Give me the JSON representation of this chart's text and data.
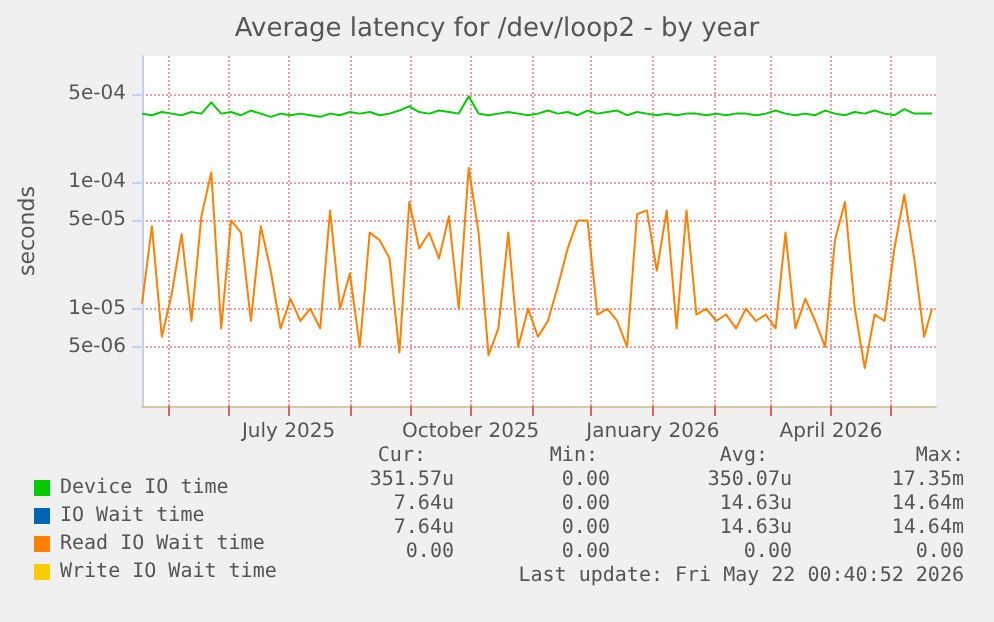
{
  "chart_data": {
    "type": "line",
    "title": "Average latency for /dev/loop2 - by year",
    "ylabel": "seconds",
    "log": "y",
    "grid": true,
    "legend": "bottom",
    "xlim": [
      "2025-04-18",
      "2026-05-24"
    ],
    "ylim": [
      1.7e-06,
      0.001
    ],
    "yticks": [
      {
        "value": 5e-06,
        "label": "5e-06"
      },
      {
        "value": 1e-05,
        "label": "1e-05"
      },
      {
        "value": 5e-05,
        "label": "5e-05"
      },
      {
        "value": 0.0001,
        "label": "1e-04"
      },
      {
        "value": 0.0005,
        "label": "5e-04"
      }
    ],
    "xticks": [
      {
        "value": "2025-05-01",
        "label": null
      },
      {
        "value": "2025-06-01",
        "label": null
      },
      {
        "value": "2025-07-01",
        "label": "July 2025"
      },
      {
        "value": "2025-08-01",
        "label": null
      },
      {
        "value": "2025-09-01",
        "label": null
      },
      {
        "value": "2025-10-01",
        "label": "October 2025"
      },
      {
        "value": "2025-11-01",
        "label": null
      },
      {
        "value": "2025-12-01",
        "label": null
      },
      {
        "value": "2026-01-01",
        "label": "January 2026"
      },
      {
        "value": "2026-02-01",
        "label": null
      },
      {
        "value": "2026-03-01",
        "label": null
      },
      {
        "value": "2026-04-01",
        "label": "April 2026"
      },
      {
        "value": "2026-05-01",
        "label": null
      }
    ],
    "x": [
      "2025-04-18",
      "2025-04-23",
      "2025-04-28",
      "2025-05-03",
      "2025-05-08",
      "2025-05-13",
      "2025-05-18",
      "2025-05-23",
      "2025-05-28",
      "2025-06-02",
      "2025-06-07",
      "2025-06-12",
      "2025-06-17",
      "2025-06-22",
      "2025-06-27",
      "2025-07-02",
      "2025-07-07",
      "2025-07-12",
      "2025-07-17",
      "2025-07-22",
      "2025-07-27",
      "2025-08-01",
      "2025-08-06",
      "2025-08-11",
      "2025-08-16",
      "2025-08-21",
      "2025-08-26",
      "2025-08-31",
      "2025-09-05",
      "2025-09-10",
      "2025-09-15",
      "2025-09-20",
      "2025-09-25",
      "2025-09-30",
      "2025-10-05",
      "2025-10-10",
      "2025-10-15",
      "2025-10-20",
      "2025-10-25",
      "2025-10-30",
      "2025-11-04",
      "2025-11-09",
      "2025-11-14",
      "2025-11-19",
      "2025-11-24",
      "2025-11-29",
      "2025-12-04",
      "2025-12-09",
      "2025-12-14",
      "2025-12-19",
      "2025-12-24",
      "2025-12-29",
      "2026-01-03",
      "2026-01-08",
      "2026-01-13",
      "2026-01-18",
      "2026-01-23",
      "2026-01-28",
      "2026-02-02",
      "2026-02-07",
      "2026-02-12",
      "2026-02-17",
      "2026-02-22",
      "2026-02-27",
      "2026-03-04",
      "2026-03-09",
      "2026-03-14",
      "2026-03-19",
      "2026-03-24",
      "2026-03-29",
      "2026-04-03",
      "2026-04-08",
      "2026-04-13",
      "2026-04-18",
      "2026-04-23",
      "2026-04-28",
      "2026-05-03",
      "2026-05-08",
      "2026-05-13",
      "2026-05-18",
      "2026-05-22"
    ],
    "series": [
      {
        "name": "Device IO time",
        "color": "#00cc00",
        "values": [
          0.00035,
          0.00034,
          0.00036,
          0.00035,
          0.00034,
          0.00036,
          0.00035,
          0.00043,
          0.00035,
          0.00036,
          0.00034,
          0.00037,
          0.00035,
          0.00033,
          0.00035,
          0.00034,
          0.00035,
          0.00034,
          0.00033,
          0.00035,
          0.00034,
          0.00036,
          0.00035,
          0.00036,
          0.00034,
          0.00035,
          0.00037,
          0.0004,
          0.00036,
          0.00035,
          0.00037,
          0.00036,
          0.00035,
          0.00048,
          0.00035,
          0.00034,
          0.00035,
          0.00036,
          0.00035,
          0.00034,
          0.00035,
          0.00037,
          0.00035,
          0.00036,
          0.00034,
          0.00037,
          0.00035,
          0.00036,
          0.00037,
          0.00034,
          0.00036,
          0.00035,
          0.00034,
          0.00035,
          0.00034,
          0.00035,
          0.00035,
          0.00034,
          0.00035,
          0.00034,
          0.00035,
          0.00035,
          0.00034,
          0.00035,
          0.00037,
          0.00035,
          0.00034,
          0.00035,
          0.00034,
          0.00037,
          0.00035,
          0.00034,
          0.00036,
          0.00035,
          0.00037,
          0.00035,
          0.00034,
          0.00038,
          0.00035,
          0.00035,
          0.00035
        ]
      },
      {
        "name": "IO Wait time",
        "color": "#0066b3",
        "values": [
          null,
          null,
          null,
          null,
          null,
          null,
          null,
          null,
          null,
          null,
          null,
          null,
          null,
          null,
          null,
          null,
          null,
          null,
          null,
          null,
          null,
          null,
          null,
          null,
          null,
          null,
          null,
          null,
          null,
          null,
          null,
          null,
          null,
          null,
          null,
          null,
          null,
          null,
          null,
          null,
          null,
          null,
          null,
          null,
          null,
          null,
          null,
          null,
          null,
          null,
          null,
          null,
          null,
          null,
          null,
          null,
          null,
          null,
          null,
          null,
          null,
          null,
          null,
          null,
          null,
          null,
          null,
          null,
          null,
          null,
          null,
          null,
          null,
          null,
          null,
          null,
          null,
          null,
          null,
          null,
          null
        ]
      },
      {
        "name": "Read IO Wait time",
        "color": "#ff8000",
        "values": [
          1.1e-05,
          4.5e-05,
          6e-06,
          1.3e-05,
          3.9e-05,
          8e-06,
          5.4e-05,
          0.00012,
          7e-06,
          5e-05,
          4e-05,
          8e-06,
          4.5e-05,
          2e-05,
          7e-06,
          1.2e-05,
          8e-06,
          1e-05,
          7e-06,
          6e-05,
          1e-05,
          1.9e-05,
          5e-06,
          4e-05,
          3.5e-05,
          2.5e-05,
          4.5e-06,
          7e-05,
          3e-05,
          4e-05,
          2.5e-05,
          5.4e-05,
          1e-05,
          0.00013,
          4e-05,
          4.3e-06,
          7e-06,
          4e-05,
          5e-06,
          1e-05,
          6e-06,
          8e-06,
          1.5e-05,
          3e-05,
          5e-05,
          5e-05,
          9e-06,
          1e-05,
          8e-06,
          5e-06,
          5.6e-05,
          6e-05,
          2e-05,
          6e-05,
          7e-06,
          6e-05,
          9e-06,
          1e-05,
          8e-06,
          9e-06,
          7e-06,
          1e-05,
          8e-06,
          9e-06,
          7e-06,
          4e-05,
          7e-06,
          1.2e-05,
          8e-06,
          5e-06,
          3.5e-05,
          7e-05,
          1e-05,
          3.4e-06,
          9e-06,
          8e-06,
          3e-05,
          8e-05,
          2.5e-05,
          6e-06,
          1e-05
        ]
      },
      {
        "name": "Write IO Wait time",
        "color": "#ffcc00",
        "values": [
          null,
          null,
          null,
          null,
          null,
          null,
          null,
          null,
          null,
          null,
          null,
          null,
          null,
          null,
          null,
          null,
          null,
          null,
          null,
          null,
          null,
          null,
          null,
          null,
          null,
          null,
          null,
          null,
          null,
          null,
          null,
          null,
          null,
          null,
          null,
          null,
          null,
          null,
          null,
          null,
          null,
          null,
          null,
          null,
          null,
          null,
          null,
          null,
          null,
          null,
          null,
          null,
          null,
          null,
          null,
          null,
          null,
          null,
          null,
          null,
          null,
          null,
          null,
          null,
          null,
          null,
          null,
          null,
          null,
          null,
          null,
          null,
          null,
          null,
          null,
          null,
          null,
          null,
          null,
          null,
          null
        ]
      }
    ],
    "annotations": [
      "Cur:",
      "Min:",
      "Avg:",
      "Max:",
      "351.57u",
      "0.00",
      "350.07u",
      "17.35m",
      "7.64u",
      "0.00",
      "14.63u",
      "14.64m",
      "7.64u",
      "0.00",
      "14.63u",
      "14.64m",
      "0.00",
      "0.00",
      "0.00",
      "0.00",
      "Last update: Fri May 22 00:40:52 2026"
    ]
  }
}
